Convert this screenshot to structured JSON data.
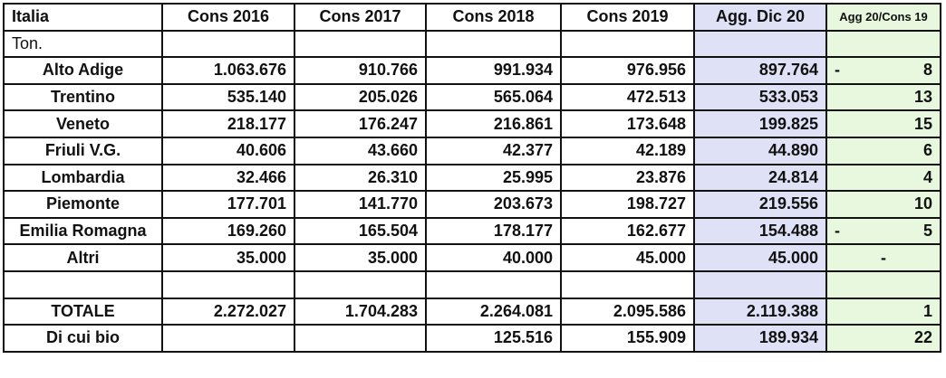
{
  "header": {
    "label": "Italia",
    "cols": [
      "Cons 2016",
      "Cons 2017",
      "Cons 2018",
      "Cons 2019",
      "Agg. Dic 20",
      "Agg 20/Cons 19"
    ]
  },
  "unit": "Ton.",
  "rows": [
    {
      "label": "Alto Adige",
      "values": [
        "1.063.676",
        "910.766",
        "991.934",
        "976.956",
        "897.764"
      ],
      "sign": "-",
      "pct": "8"
    },
    {
      "label": "Trentino",
      "values": [
        "535.140",
        "205.026",
        "565.064",
        "472.513",
        "533.053"
      ],
      "sign": "",
      "pct": "13"
    },
    {
      "label": "Veneto",
      "values": [
        "218.177",
        "176.247",
        "216.861",
        "173.648",
        "199.825"
      ],
      "sign": "",
      "pct": "15"
    },
    {
      "label": "Friuli V.G.",
      "values": [
        "40.606",
        "43.660",
        "42.377",
        "42.189",
        "44.890"
      ],
      "sign": "",
      "pct": "6"
    },
    {
      "label": "Lombardia",
      "values": [
        "32.466",
        "26.310",
        "25.995",
        "23.876",
        "24.814"
      ],
      "sign": "",
      "pct": "4"
    },
    {
      "label": "Piemonte",
      "values": [
        "177.701",
        "141.770",
        "203.673",
        "198.727",
        "219.556"
      ],
      "sign": "",
      "pct": "10"
    },
    {
      "label": "Emilia Romagna",
      "values": [
        "169.260",
        "165.504",
        "178.177",
        "162.677",
        "154.488"
      ],
      "sign": "-",
      "pct": "5"
    },
    {
      "label": "Altri",
      "values": [
        "35.000",
        "35.000",
        "40.000",
        "45.000",
        "45.000"
      ],
      "sign": "",
      "pct": "-"
    }
  ],
  "totale": {
    "label": "TOTALE",
    "values": [
      "2.272.027",
      "1.704.283",
      "2.264.081",
      "2.095.586",
      "2.119.388"
    ],
    "pct": "1"
  },
  "bio": {
    "label": "Di cui bio",
    "values": [
      "",
      "",
      "125.516",
      "155.909",
      "189.934"
    ],
    "pct": "22"
  },
  "colors": {
    "agg_column": "#dfe2f6",
    "ratio_column": "#e7f8de"
  }
}
